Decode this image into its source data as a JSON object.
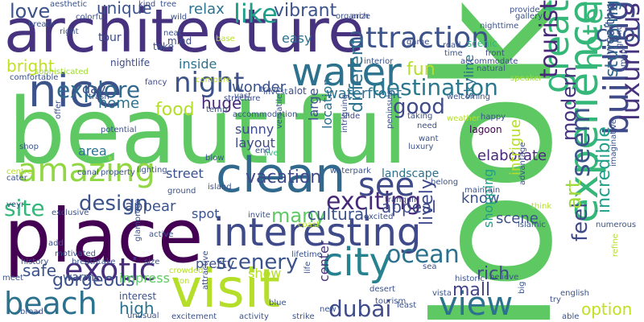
{
  "words": [
    {
      "text": "look",
      "color": "#5ec962"
    },
    {
      "text": "beautiful",
      "color": "#5ec962"
    },
    {
      "text": "architecture",
      "color": "#46327e"
    },
    {
      "text": "place",
      "color": "#440154"
    },
    {
      "text": "nice",
      "color": "#3b528b"
    },
    {
      "text": "clean",
      "color": "#31688e"
    },
    {
      "text": "visit",
      "color": "#b5de2b"
    },
    {
      "text": "interesting",
      "color": "#3e4a89"
    },
    {
      "text": "city",
      "color": "#26828e"
    },
    {
      "text": "beach",
      "color": "#2c728e"
    },
    {
      "text": "water",
      "color": "#2c728e"
    },
    {
      "text": "amazing",
      "color": "#90d743"
    },
    {
      "text": "exotic",
      "color": "#472d7b"
    },
    {
      "text": "view",
      "color": "#2c728e"
    },
    {
      "text": "experience",
      "color": "#35b779"
    },
    {
      "text": "attraction",
      "color": "#3b528b"
    },
    {
      "text": "night",
      "color": "#3b528b"
    },
    {
      "text": "building",
      "color": "#3e4a89"
    },
    {
      "text": "great",
      "color": "#35b779"
    },
    {
      "text": "luxurious",
      "color": "#46327e"
    },
    {
      "text": "hotel",
      "color": "#35b779"
    },
    {
      "text": "seem",
      "color": "#3b528b"
    },
    {
      "text": "see",
      "color": "#3e4a89"
    },
    {
      "text": "exciting",
      "color": "#482878"
    },
    {
      "text": "explore",
      "color": "#31688e"
    },
    {
      "text": "destination",
      "color": "#2a788e"
    },
    {
      "text": "tourist",
      "color": "#482878"
    },
    {
      "text": "scenery",
      "color": "#3b528b"
    },
    {
      "text": "ocean",
      "color": "#2c728e"
    },
    {
      "text": "dubai",
      "color": "#3e4a89"
    },
    {
      "text": "site",
      "color": "#35b779"
    },
    {
      "text": "design",
      "color": "#3b528b"
    },
    {
      "text": "like",
      "color": "#1f9e89"
    },
    {
      "text": "cool",
      "color": "#3b528b"
    },
    {
      "text": "love",
      "color": "#3b528b"
    },
    {
      "text": "stunning",
      "color": "#31688e"
    },
    {
      "text": "good",
      "color": "#3e4a89"
    },
    {
      "text": "feel",
      "color": "#3e4a89"
    },
    {
      "text": "many",
      "color": "#5ec962"
    },
    {
      "text": "gorgeous",
      "color": "#3b528b"
    },
    {
      "text": "modern",
      "color": "#46327e"
    },
    {
      "text": "art",
      "color": "#a0da39"
    },
    {
      "text": "incredible",
      "color": "#1f9e89"
    },
    {
      "text": "food",
      "color": "#b5de2b"
    },
    {
      "text": "bright",
      "color": "#c2df23"
    },
    {
      "text": "fun",
      "color": "#b5de2b"
    },
    {
      "text": "vacation",
      "color": "#3e4a89"
    },
    {
      "text": "waterfront",
      "color": "#2c728e"
    },
    {
      "text": "different",
      "color": "#2c728e"
    },
    {
      "text": "huge",
      "color": "#482878"
    },
    {
      "text": "mall",
      "color": "#414487"
    },
    {
      "text": "rich",
      "color": "#3e4a89"
    },
    {
      "text": "cultural",
      "color": "#3b528b"
    },
    {
      "text": "safe",
      "color": "#3b528b"
    },
    {
      "text": "high",
      "color": "#2c728e"
    },
    {
      "text": "option",
      "color": "#c2df23"
    },
    {
      "text": "lively",
      "color": "#3e4a89"
    },
    {
      "text": "vibrant",
      "color": "#3b528b"
    },
    {
      "text": "unique",
      "color": "#3b528b"
    },
    {
      "text": "relax",
      "color": "#2c728e"
    },
    {
      "text": "home",
      "color": "#2c728e"
    },
    {
      "text": "day",
      "color": "#3e4a89"
    },
    {
      "text": "inside",
      "color": "#2c728e"
    },
    {
      "text": "area",
      "color": "#2c728e"
    },
    {
      "text": "street",
      "color": "#3b528b"
    },
    {
      "text": "appeal",
      "color": "#3e4a89"
    },
    {
      "text": "know",
      "color": "#3b528b"
    },
    {
      "text": "scene",
      "color": "#3b528b"
    },
    {
      "text": "spot",
      "color": "#3b528b"
    },
    {
      "text": "layout",
      "color": "#3e4a89"
    },
    {
      "text": "sunny",
      "color": "#3e4a89"
    },
    {
      "text": "large",
      "color": "#3b528b"
    },
    {
      "text": "location",
      "color": "#2c728e"
    },
    {
      "text": "skyline",
      "color": "#2c728e"
    },
    {
      "text": "elaborate",
      "color": "#482878"
    },
    {
      "text": "intrigue",
      "color": "#b5de2b"
    },
    {
      "text": "appear",
      "color": "#3b528b"
    },
    {
      "text": "wonder",
      "color": "#3b528b"
    },
    {
      "text": "show",
      "color": "#b5de2b"
    },
    {
      "text": "center",
      "color": "#46327e"
    },
    {
      "text": "shopping",
      "color": "#1f9e89"
    },
    {
      "text": "wealthy",
      "color": "#3b528b"
    },
    {
      "text": "easy",
      "color": "#2c728e"
    },
    {
      "text": "landscape",
      "color": "#2c728e"
    },
    {
      "text": "pretty",
      "color": "#3b528b"
    },
    {
      "text": "warm",
      "color": "#3b528b"
    },
    {
      "text": "impress",
      "color": "#5ec962"
    },
    {
      "text": "interest",
      "color": "#3b528b"
    },
    {
      "text": "tour",
      "color": "#3e4a89"
    },
    {
      "text": "scenic",
      "color": "#35b779"
    },
    {
      "text": "nightlife",
      "color": "#3e4a89"
    },
    {
      "text": "sophisticated",
      "color": "#a0da39"
    },
    {
      "text": "comfortable",
      "color": "#3b528b"
    },
    {
      "text": "trash",
      "color": "#3b528b"
    },
    {
      "text": "fancy",
      "color": "#3e4a89"
    },
    {
      "text": "alot",
      "color": "#3e4a89"
    },
    {
      "text": "interior",
      "color": "#3b528b"
    },
    {
      "text": "accommodate",
      "color": "#3e4a89"
    },
    {
      "text": "nighttime",
      "color": "#3b528b"
    },
    {
      "text": "speaker",
      "color": "#a0da39"
    },
    {
      "text": "front",
      "color": "#3e4a89"
    },
    {
      "text": "colorful",
      "color": "#3b528b"
    },
    {
      "text": "aesthetic",
      "color": "#3b528b"
    },
    {
      "text": "breath",
      "color": "#3b528b"
    },
    {
      "text": "right",
      "color": "#3b528b"
    },
    {
      "text": "kind",
      "color": "#3e4a89"
    },
    {
      "text": "tree",
      "color": "#3b528b"
    },
    {
      "text": "mind",
      "color": "#3e4a89"
    },
    {
      "text": "take",
      "color": "#3b528b"
    },
    {
      "text": "neat",
      "color": "#3b528b"
    },
    {
      "text": "base",
      "color": "#b5de2b"
    },
    {
      "text": "wild",
      "color": "#3b528b"
    },
    {
      "text": "organize",
      "color": "#3b528b"
    },
    {
      "text": "arch",
      "color": "#3e4a89"
    },
    {
      "text": "provide",
      "color": "#3b528b"
    },
    {
      "text": "gallery",
      "color": "#3b528b"
    },
    {
      "text": "road",
      "color": "#3b528b"
    },
    {
      "text": "time",
      "color": "#3b528b"
    },
    {
      "text": "game",
      "color": "#3e4a89"
    },
    {
      "text": "natural",
      "color": "#3b528b"
    },
    {
      "text": "compare",
      "color": "#c2df23"
    },
    {
      "text": "travel",
      "color": "#3b528b"
    },
    {
      "text": "vast",
      "color": "#3b528b"
    },
    {
      "text": "structure",
      "color": "#3e4a89"
    },
    {
      "text": "invest",
      "color": "#3b528b"
    },
    {
      "text": "temp",
      "color": "#3b528b"
    },
    {
      "text": "accommodation",
      "color": "#3b528b"
    },
    {
      "text": "slide",
      "color": "#3e4a89"
    },
    {
      "text": "welcoming",
      "color": "#3b528b"
    },
    {
      "text": "weather",
      "color": "#b5de2b"
    },
    {
      "text": "happy",
      "color": "#3b528b"
    },
    {
      "text": "lagoon",
      "color": "#440154"
    },
    {
      "text": "taking",
      "color": "#3b528b"
    },
    {
      "text": "need",
      "color": "#3b528b"
    },
    {
      "text": "want",
      "color": "#3b528b"
    },
    {
      "text": "luxury",
      "color": "#3b528b"
    },
    {
      "text": "intriguing",
      "color": "#3b528b"
    },
    {
      "text": "peninsula",
      "color": "#3b528b"
    },
    {
      "text": "offer",
      "color": "#3b528b"
    },
    {
      "text": "potential",
      "color": "#3b528b"
    },
    {
      "text": "shop",
      "color": "#3b528b"
    },
    {
      "text": "versatile",
      "color": "#3b528b"
    },
    {
      "text": "end",
      "color": "#3b528b"
    },
    {
      "text": "live",
      "color": "#35b779"
    },
    {
      "text": "blow",
      "color": "#3b528b"
    },
    {
      "text": "centre",
      "color": "#b5de2b"
    },
    {
      "text": "cater",
      "color": "#3b528b"
    },
    {
      "text": "canal",
      "color": "#3b528b"
    },
    {
      "text": "property",
      "color": "#3b528b"
    },
    {
      "text": "lighting",
      "color": "#3b528b"
    },
    {
      "text": "ground",
      "color": "#3b528b"
    },
    {
      "text": "island",
      "color": "#3b528b"
    },
    {
      "text": "waterpark",
      "color": "#3b528b"
    },
    {
      "text": "belong",
      "color": "#3b528b"
    },
    {
      "text": "maintain",
      "color": "#3b528b"
    },
    {
      "text": "advantage",
      "color": "#3b528b"
    },
    {
      "text": "think",
      "color": "#b5de2b"
    },
    {
      "text": "imaginative",
      "color": "#3b528b"
    },
    {
      "text": "grand",
      "color": "#3b528b"
    },
    {
      "text": "map",
      "color": "#3b528b"
    },
    {
      "text": "veyr",
      "color": "#3b528b"
    },
    {
      "text": "exclusive",
      "color": "#3b528b"
    },
    {
      "text": "invite",
      "color": "#3b528b"
    },
    {
      "text": "excited",
      "color": "#3b528b"
    },
    {
      "text": "tranquil",
      "color": "#3b528b"
    },
    {
      "text": "coast",
      "color": "#b5de2b"
    },
    {
      "text": "islamic",
      "color": "#3b528b"
    },
    {
      "text": "numerous",
      "color": "#3b528b"
    },
    {
      "text": "motivated",
      "color": "#3b528b"
    },
    {
      "text": "glamorous",
      "color": "#3b528b"
    },
    {
      "text": "active",
      "color": "#3b528b"
    },
    {
      "text": "size",
      "color": "#3b528b"
    },
    {
      "text": "lifetime",
      "color": "#3b528b"
    },
    {
      "text": "add",
      "color": "#3b528b"
    },
    {
      "text": "history",
      "color": "#3b528b"
    },
    {
      "text": "breathtake",
      "color": "#3b528b"
    },
    {
      "text": "crowded",
      "color": "#b5de2b"
    },
    {
      "text": "ton",
      "color": "#b5de2b"
    },
    {
      "text": "sea",
      "color": "#3b528b"
    },
    {
      "text": "life",
      "color": "#3b528b"
    },
    {
      "text": "historic",
      "color": "#3b528b"
    },
    {
      "text": "believe",
      "color": "#3b528b"
    },
    {
      "text": "refine",
      "color": "#b5de2b"
    },
    {
      "text": "meet",
      "color": "#3b528b"
    },
    {
      "text": "broad",
      "color": "#3b528b"
    },
    {
      "text": "unusual",
      "color": "#3b528b"
    },
    {
      "text": "attractive",
      "color": "#3b528b"
    },
    {
      "text": "desert",
      "color": "#3b528b"
    },
    {
      "text": "tourism",
      "color": "#3b528b"
    },
    {
      "text": "least",
      "color": "#3b528b"
    },
    {
      "text": "vista",
      "color": "#3b528b"
    },
    {
      "text": "english",
      "color": "#3b528b"
    },
    {
      "text": "try",
      "color": "#3b528b"
    },
    {
      "text": "big",
      "color": "#3b528b"
    },
    {
      "text": "blue",
      "color": "#3b528b"
    },
    {
      "text": "excitement",
      "color": "#3b528b"
    },
    {
      "text": "activity",
      "color": "#3b528b"
    },
    {
      "text": "strike",
      "color": "#3b528b"
    },
    {
      "text": "new",
      "color": "#3b528b"
    },
    {
      "text": "able",
      "color": "#3b528b"
    }
  ]
}
